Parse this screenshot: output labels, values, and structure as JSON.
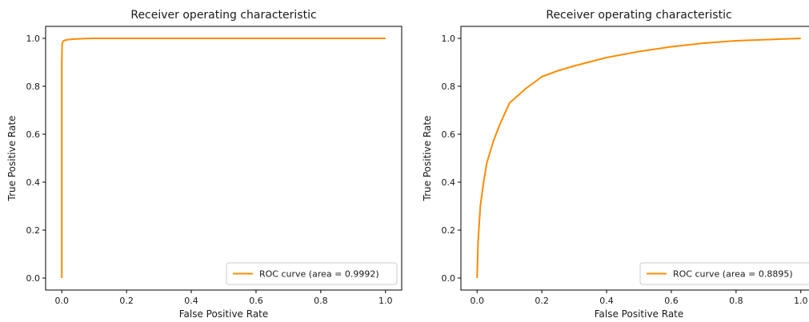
{
  "colors": {
    "roc_curve": "#ff8c00",
    "axes": "#000000",
    "legend_border": "#cccccc"
  },
  "chart_data": [
    {
      "type": "line",
      "title": "Receiver operating characteristic",
      "xlabel": "False Positive Rate",
      "ylabel": "True Positive Rate",
      "xlim": [
        0.0,
        1.0
      ],
      "ylim": [
        0.0,
        1.0
      ],
      "xticks": [
        0.0,
        0.2,
        0.4,
        0.6,
        0.8,
        1.0
      ],
      "xtick_labels": [
        "0.0",
        "0.2",
        "0.4",
        "0.6",
        "0.8",
        "1.0"
      ],
      "yticks": [
        0.0,
        0.2,
        0.4,
        0.6,
        0.8,
        1.0
      ],
      "ytick_labels": [
        "0.0",
        "0.2",
        "0.4",
        "0.6",
        "0.8",
        "1.0"
      ],
      "grid": false,
      "legend_position": "lower right",
      "series": [
        {
          "name": "ROC curve (area = 0.9992)",
          "color": "#ff8c00",
          "x": [
            0.0,
            0.0,
            0.001,
            0.003,
            0.006,
            0.01,
            0.02,
            0.04,
            0.07,
            0.1,
            0.2,
            0.4,
            0.6,
            0.8,
            1.0
          ],
          "y": [
            0.0,
            0.9,
            0.975,
            0.985,
            0.99,
            0.992,
            0.995,
            0.997,
            0.999,
            1.0,
            1.0,
            1.0,
            1.0,
            1.0,
            1.0
          ]
        }
      ]
    },
    {
      "type": "line",
      "title": "Receiver operating characteristic",
      "xlabel": "False Positive Rate",
      "ylabel": "True Positive Rate",
      "xlim": [
        0.0,
        1.0
      ],
      "ylim": [
        0.0,
        1.0
      ],
      "xticks": [
        0.0,
        0.2,
        0.4,
        0.6,
        0.8,
        1.0
      ],
      "xtick_labels": [
        "0.0",
        "0.2",
        "0.4",
        "0.6",
        "0.8",
        "1.0"
      ],
      "yticks": [
        0.0,
        0.2,
        0.4,
        0.6,
        0.8,
        1.0
      ],
      "ytick_labels": [
        "0.0",
        "0.2",
        "0.4",
        "0.6",
        "0.8",
        "1.0"
      ],
      "grid": false,
      "legend_position": "lower right",
      "series": [
        {
          "name": "ROC curve (area = 0.8895)",
          "color": "#ff8c00",
          "x": [
            0.0,
            0.003,
            0.01,
            0.02,
            0.03,
            0.05,
            0.07,
            0.1,
            0.15,
            0.2,
            0.25,
            0.3,
            0.4,
            0.5,
            0.6,
            0.7,
            0.8,
            0.9,
            1.0
          ],
          "y": [
            0.0,
            0.15,
            0.3,
            0.4,
            0.48,
            0.57,
            0.64,
            0.73,
            0.79,
            0.84,
            0.865,
            0.885,
            0.92,
            0.945,
            0.965,
            0.98,
            0.99,
            0.995,
            1.0
          ]
        }
      ]
    }
  ]
}
